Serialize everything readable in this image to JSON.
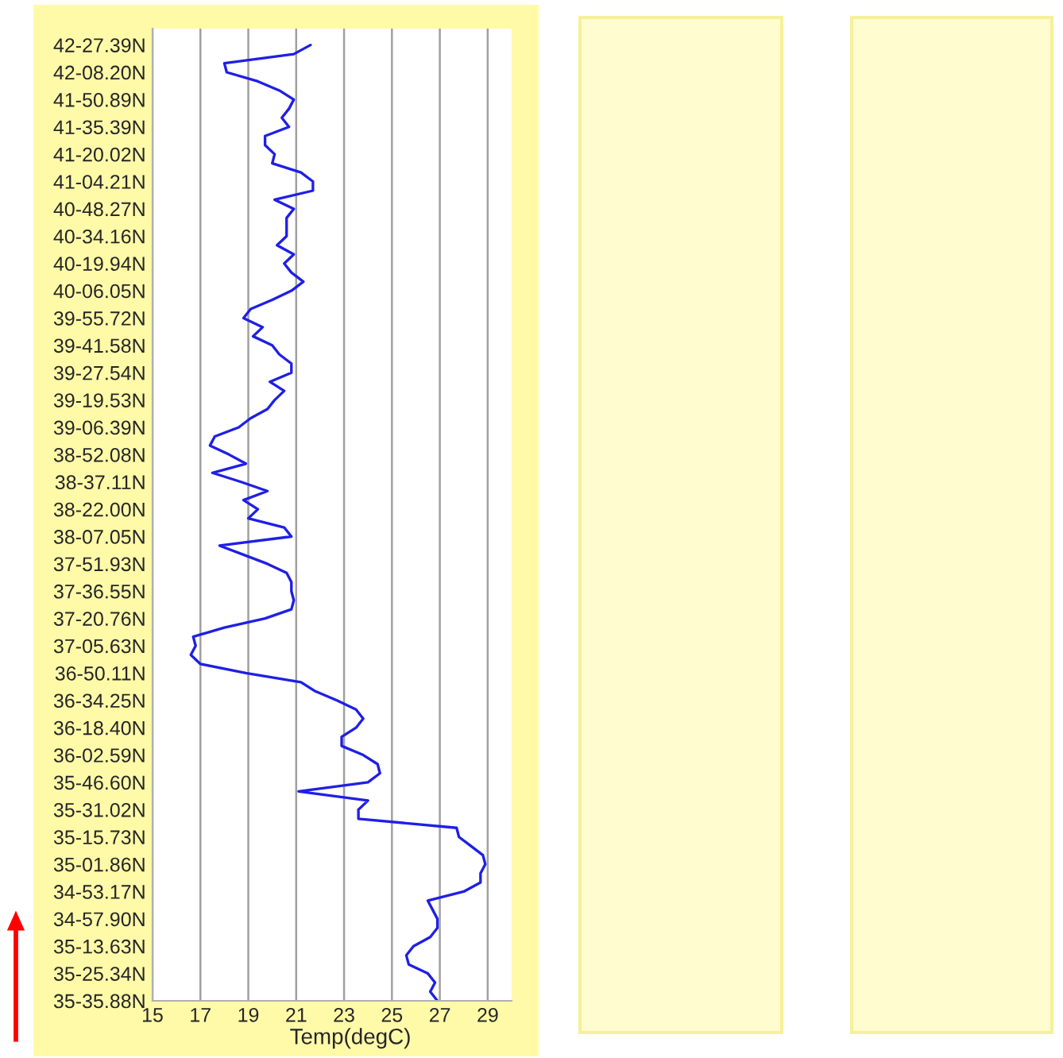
{
  "chart_data": {
    "type": "line",
    "orientation": "horizontal",
    "xlabel": "Temp(degC)",
    "xlim": [
      15,
      30
    ],
    "xticks": [
      15,
      17,
      19,
      21,
      23,
      25,
      27,
      29
    ],
    "categories": [
      "42-27.39N",
      null,
      null,
      "42-08.20N",
      null,
      null,
      "41-50.89N",
      null,
      null,
      "41-35.39N",
      null,
      null,
      "41-20.02N",
      null,
      null,
      "41-04.21N",
      null,
      null,
      "40-48.27N",
      null,
      null,
      "40-34.16N",
      null,
      null,
      "40-19.94N",
      null,
      null,
      "40-06.05N",
      null,
      null,
      "39-55.72N",
      null,
      null,
      "39-41.58N",
      null,
      null,
      "39-27.54N",
      null,
      null,
      "39-19.53N",
      null,
      null,
      "39-06.39N",
      null,
      null,
      "38-52.08N",
      null,
      null,
      "38-37.11N",
      null,
      null,
      "38-22.00N",
      null,
      null,
      "38-07.05N",
      null,
      null,
      "37-51.93N",
      null,
      null,
      "37-36.55N",
      null,
      null,
      "37-20.76N",
      null,
      null,
      "37-05.63N",
      null,
      null,
      "36-50.11N",
      null,
      null,
      "36-34.25N",
      null,
      null,
      "36-18.40N",
      null,
      null,
      "36-02.59N",
      null,
      null,
      "35-46.60N",
      null,
      null,
      "35-31.02N",
      null,
      null,
      "35-15.73N",
      null,
      null,
      "35-01.86N",
      null,
      null,
      "34-53.17N",
      null,
      null,
      "34-57.90N",
      null,
      null,
      "35-13.63N",
      null,
      null,
      "35-25.34N",
      null,
      null,
      "35-35.88N"
    ],
    "grid": "x",
    "series": [
      {
        "color": "#1f1fe6",
        "values": [
          21.6,
          20.9,
          18.0,
          18.1,
          19.4,
          20.3,
          20.9,
          20.7,
          20.4,
          20.7,
          19.7,
          19.7,
          20.1,
          20.0,
          21.2,
          21.7,
          21.7,
          20.1,
          20.9,
          20.6,
          20.6,
          20.6,
          20.2,
          20.9,
          20.5,
          20.8,
          21.3,
          20.8,
          20.0,
          19.1,
          18.8,
          19.6,
          19.2,
          20.0,
          20.3,
          20.8,
          20.8,
          19.9,
          20.5,
          20.1,
          19.8,
          19.1,
          18.6,
          17.6,
          17.4,
          18.2,
          18.9,
          17.5,
          18.7,
          19.8,
          18.8,
          19.4,
          19.0,
          20.5,
          20.8,
          17.8,
          18.8,
          19.8,
          20.6,
          20.8,
          20.8,
          20.9,
          20.8,
          19.7,
          18.0,
          16.7,
          16.8,
          16.6,
          17.0,
          18.9,
          21.2,
          21.8,
          22.7,
          23.5,
          23.8,
          23.5,
          22.9,
          22.9,
          23.8,
          24.4,
          24.5,
          24.0,
          21.1,
          24.0,
          23.6,
          23.6,
          27.7,
          27.8,
          28.3,
          28.8,
          28.9,
          28.7,
          28.7,
          28.0,
          26.5,
          26.7,
          26.9,
          26.9,
          26.6,
          25.9,
          25.6,
          25.7,
          26.5,
          26.8,
          26.6,
          26.9
        ]
      }
    ]
  }
}
